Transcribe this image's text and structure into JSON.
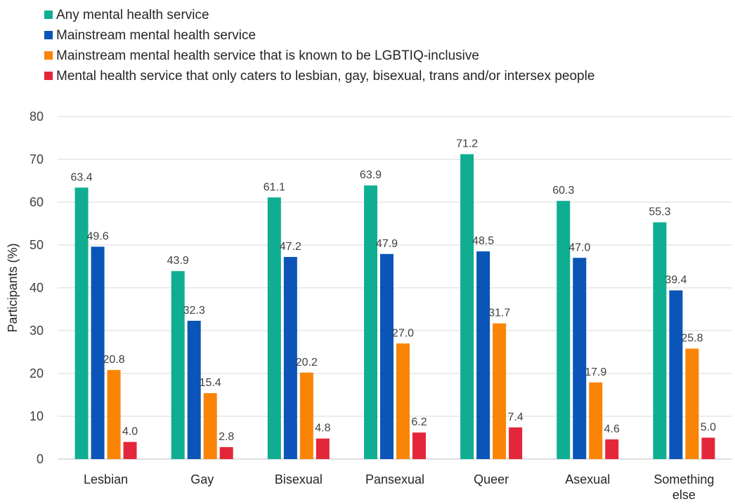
{
  "chart_data": {
    "type": "bar",
    "title": "",
    "xlabel": "",
    "ylabel": "Participants (%)",
    "ylim": [
      0,
      80
    ],
    "yticks": [
      0,
      10,
      20,
      30,
      40,
      50,
      60,
      70,
      80
    ],
    "grid": true,
    "legend_position": "top-left",
    "categories": [
      "Lesbian",
      "Gay",
      "Bisexual",
      "Pansexual",
      "Queer",
      "Asexual",
      "Something else"
    ],
    "series": [
      {
        "name": "Any mental health service",
        "color": "#0FAE93",
        "values": [
          63.4,
          43.9,
          61.1,
          63.9,
          71.2,
          60.3,
          55.3
        ]
      },
      {
        "name": "Mainstream mental health service",
        "color": "#0A55B7",
        "values": [
          49.6,
          32.3,
          47.2,
          47.9,
          48.5,
          47.0,
          39.4
        ]
      },
      {
        "name": "Mainstream mental health service that is known to be LGBTIQ-inclusive",
        "color": "#F98406",
        "values": [
          20.8,
          15.4,
          20.2,
          27.0,
          31.7,
          17.9,
          25.8
        ]
      },
      {
        "name": "Mental health service that only caters to lesbian, gay, bisexual, trans and/or intersex people",
        "color": "#E4263A",
        "values": [
          4.0,
          2.8,
          4.8,
          6.2,
          7.4,
          4.6,
          5.0
        ]
      }
    ]
  }
}
